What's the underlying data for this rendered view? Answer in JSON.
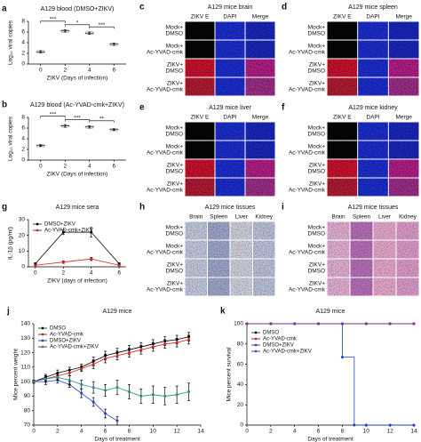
{
  "chart_data": [
    {
      "panel": "a",
      "type": "dot",
      "title": "A129 blood (DMSO+ZIKV)",
      "x_label": "ZIKV (Days of infection)",
      "y_label": "Log₁₀ viral copies",
      "x": [
        0,
        2,
        4,
        6
      ],
      "values": [
        2.3,
        6.2,
        5.8,
        3.7
      ],
      "errors": [
        0.2,
        0.2,
        0.2,
        0.2
      ],
      "color": "#000000",
      "xlim": [
        -1,
        7
      ],
      "xticks": [
        0,
        2,
        4,
        6
      ],
      "ylim": [
        0,
        8
      ],
      "yticks": [
        0,
        2,
        4,
        6,
        8
      ],
      "brackets": [
        {
          "x": [
            0,
            2
          ],
          "label": "***"
        },
        {
          "x": [
            2,
            4
          ],
          "label": "*"
        },
        {
          "x": [
            4,
            6
          ],
          "label": "***"
        }
      ]
    },
    {
      "panel": "b",
      "type": "dot",
      "title": "A129 blood (Ac-YVAD-cmk+ZIKV)",
      "x_label": "ZIKV (Days of infection)",
      "y_label": "Log₁₀ viral copies",
      "x": [
        0,
        2,
        4,
        6
      ],
      "values": [
        2.7,
        6.4,
        6.2,
        5.7
      ],
      "errors": [
        0.15,
        0.25,
        0.2,
        0.15
      ],
      "color": "#000000",
      "xlim": [
        -1,
        7
      ],
      "xticks": [
        0,
        2,
        4,
        6
      ],
      "ylim": [
        0,
        8
      ],
      "yticks": [
        0,
        2,
        4,
        6,
        8
      ],
      "brackets": [
        {
          "x": [
            0,
            2
          ],
          "label": "***"
        },
        {
          "x": [
            2,
            4
          ],
          "label": "***"
        },
        {
          "x": [
            4,
            6
          ],
          "label": "**"
        }
      ]
    },
    {
      "panel": "g",
      "type": "line",
      "title": "A129 mice sera",
      "x_label": "ZIKV (days of infection)",
      "y_label": "IL-1β (pg/ml)",
      "x": [
        0,
        2,
        4,
        6
      ],
      "xlim": [
        -0.5,
        6.5
      ],
      "xticks": [
        0,
        2,
        4,
        6
      ],
      "ylim": [
        0,
        30
      ],
      "yticks": [
        0,
        10,
        20,
        30
      ],
      "series": [
        {
          "name": "DMSO+ZIKV",
          "color": "#000000",
          "values": [
            2,
            22,
            22,
            2
          ],
          "errors": [
            0.5,
            1.5,
            3,
            0.5
          ]
        },
        {
          "name": "Ac-YVAD-cmk+ZIKV",
          "color": "#e02020",
          "values": [
            1,
            3,
            5,
            1
          ],
          "errors": [
            0.3,
            0.8,
            1,
            0.3
          ]
        }
      ]
    },
    {
      "panel": "j",
      "type": "line",
      "title": "A129 mice",
      "x_label": "Days of treatment",
      "y_label": "Mice percent weight",
      "x": [
        0,
        1,
        2,
        3,
        4,
        5,
        6,
        7,
        8,
        9,
        10,
        11,
        12,
        13
      ],
      "xlim": [
        0,
        14
      ],
      "xticks": [
        0,
        2,
        4,
        6,
        8,
        10,
        12,
        14
      ],
      "ylim": [
        70,
        140
      ],
      "yticks": [
        70,
        80,
        90,
        100,
        110,
        120,
        130,
        140
      ],
      "series": [
        {
          "name": "DMSO",
          "color": "#000000",
          "values": [
            100,
            103,
            106,
            108,
            110,
            114,
            118,
            120,
            122,
            124,
            126,
            128,
            129,
            131
          ],
          "errors": [
            1,
            2,
            2,
            2,
            2,
            3,
            3,
            3,
            3,
            3,
            3,
            3,
            3,
            3
          ]
        },
        {
          "name": "Ac-YVAD-cmk",
          "color": "#e02020",
          "values": [
            100,
            102,
            104,
            106,
            109,
            112,
            116,
            118,
            120,
            122,
            124,
            126,
            127,
            129
          ],
          "errors": [
            1,
            2,
            2,
            2,
            2,
            3,
            3,
            3,
            3,
            3,
            3,
            3,
            3,
            3
          ]
        },
        {
          "name": "DMSO+ZIKV",
          "color": "#2040d0",
          "values": [
            100,
            100,
            101,
            98,
            92,
            86,
            78,
            73,
            null,
            null,
            null,
            null,
            null,
            null
          ],
          "errors": [
            1,
            2,
            2,
            2,
            3,
            3,
            3,
            3,
            null,
            null,
            null,
            null,
            null,
            null
          ]
        },
        {
          "name": "Ac-YVAD-cmk+ZIKV",
          "color": "#2a8a80",
          "values": [
            100,
            102,
            103,
            101,
            98,
            96,
            94,
            96,
            93,
            90,
            91,
            90,
            91,
            93
          ],
          "errors": [
            1,
            2,
            2,
            3,
            3,
            4,
            4,
            5,
            5,
            5,
            6,
            6,
            6,
            6
          ]
        }
      ]
    },
    {
      "panel": "k",
      "type": "step",
      "title": "A129 mice",
      "x_label": "Days of treatment",
      "y_label": "Mice percent survival",
      "x": [
        0,
        1,
        2,
        3,
        4,
        5,
        6,
        7,
        8,
        9,
        10,
        11,
        12,
        13,
        14
      ],
      "xlim": [
        0,
        14
      ],
      "xticks": [
        0,
        2,
        4,
        6,
        8,
        10,
        12,
        14
      ],
      "ylim": [
        0,
        100
      ],
      "yticks": [
        0,
        20,
        40,
        60,
        80,
        100
      ],
      "series": [
        {
          "name": "DMSO",
          "color": "#000000",
          "values": [
            100,
            100,
            100,
            100,
            100,
            100,
            100,
            100,
            100,
            100,
            100,
            100,
            100,
            100,
            100
          ]
        },
        {
          "name": "Ac-YVAD-cmk",
          "color": "#e02020",
          "values": [
            100,
            100,
            100,
            100,
            100,
            100,
            100,
            100,
            100,
            100,
            100,
            100,
            100,
            100,
            100
          ]
        },
        {
          "name": "DMSO+ZIKV",
          "color": "#2040d0",
          "values": [
            100,
            100,
            100,
            100,
            100,
            100,
            100,
            100,
            67,
            0,
            0,
            0,
            0,
            0,
            0
          ]
        },
        {
          "name": "Ac-YVAD-cmk+ZIKV",
          "color": "#8030a0",
          "values": [
            100,
            100,
            100,
            100,
            100,
            100,
            100,
            100,
            100,
            100,
            100,
            100,
            100,
            100,
            100
          ]
        }
      ]
    }
  ],
  "image_panels": [
    {
      "panel": "c",
      "style": "fluorescence",
      "title": "A129 mice brain",
      "columns": [
        "ZIKV E",
        "DAPI",
        "Merge"
      ],
      "rows": [
        [
          "Mock+",
          "DMSO"
        ],
        [
          "Mock+",
          "Ac-YVAD-cmk"
        ],
        [
          "ZIKV+",
          "DMSO"
        ],
        [
          "ZIKV+",
          "Ac-YVAD-cmk"
        ]
      ]
    },
    {
      "panel": "d",
      "style": "fluorescence",
      "title": "A129 mice spleen",
      "columns": [
        "ZIKV E",
        "DAPI",
        "Merge"
      ],
      "rows": [
        [
          "Mock+",
          "DMSO"
        ],
        [
          "Mock+",
          "Ac-YVAD-cmk"
        ],
        [
          "ZIKV+",
          "DMSO"
        ],
        [
          "ZIKV+",
          "Ac-YVAD-cmk"
        ]
      ]
    },
    {
      "panel": "e",
      "style": "fluorescence",
      "title": "A129 mice liver",
      "columns": [
        "ZIKV E",
        "DAPI",
        "Merge"
      ],
      "rows": [
        [
          "Mock+",
          "DMSO"
        ],
        [
          "Mock+",
          "Ac-YVAD-cmk"
        ],
        [
          "ZIKV+",
          "DMSO"
        ],
        [
          "ZIKV+",
          "Ac-YVAD-cmk"
        ]
      ]
    },
    {
      "panel": "f",
      "style": "fluorescence",
      "title": "A129 mice kidney",
      "columns": [
        "ZIKV E",
        "DAPI",
        "Merge"
      ],
      "rows": [
        [
          "Mock+",
          "DMSO"
        ],
        [
          "Mock+",
          "Ac-YVAD-cmk"
        ],
        [
          "ZIKV+",
          "DMSO"
        ],
        [
          "ZIKV+",
          "Ac-YVAD-cmk"
        ]
      ]
    },
    {
      "panel": "h",
      "style": "ihc",
      "title": "A129 mice tissues",
      "columns": [
        "Brain",
        "Spleen",
        "Liver",
        "Kidney"
      ],
      "rows": [
        [
          "Mock+",
          "DMSO"
        ],
        [
          "Mock+",
          "Ac-YVAD-cmk"
        ],
        [
          "ZIKV+",
          "DMSO"
        ],
        [
          "ZIKV+",
          "Ac-YVAD-cmk"
        ]
      ]
    },
    {
      "panel": "i",
      "style": "he",
      "title": "A129 mice tissues",
      "columns": [
        "Brain",
        "Spleen",
        "Liver",
        "Kidney"
      ],
      "rows": [
        [
          "Mock+",
          "DMSO"
        ],
        [
          "Mock+",
          "Ac-YVAD-cmk"
        ],
        [
          "ZIKV+",
          "DMSO"
        ],
        [
          "ZIKV+",
          "Ac-YVAD-cmk"
        ]
      ]
    }
  ]
}
